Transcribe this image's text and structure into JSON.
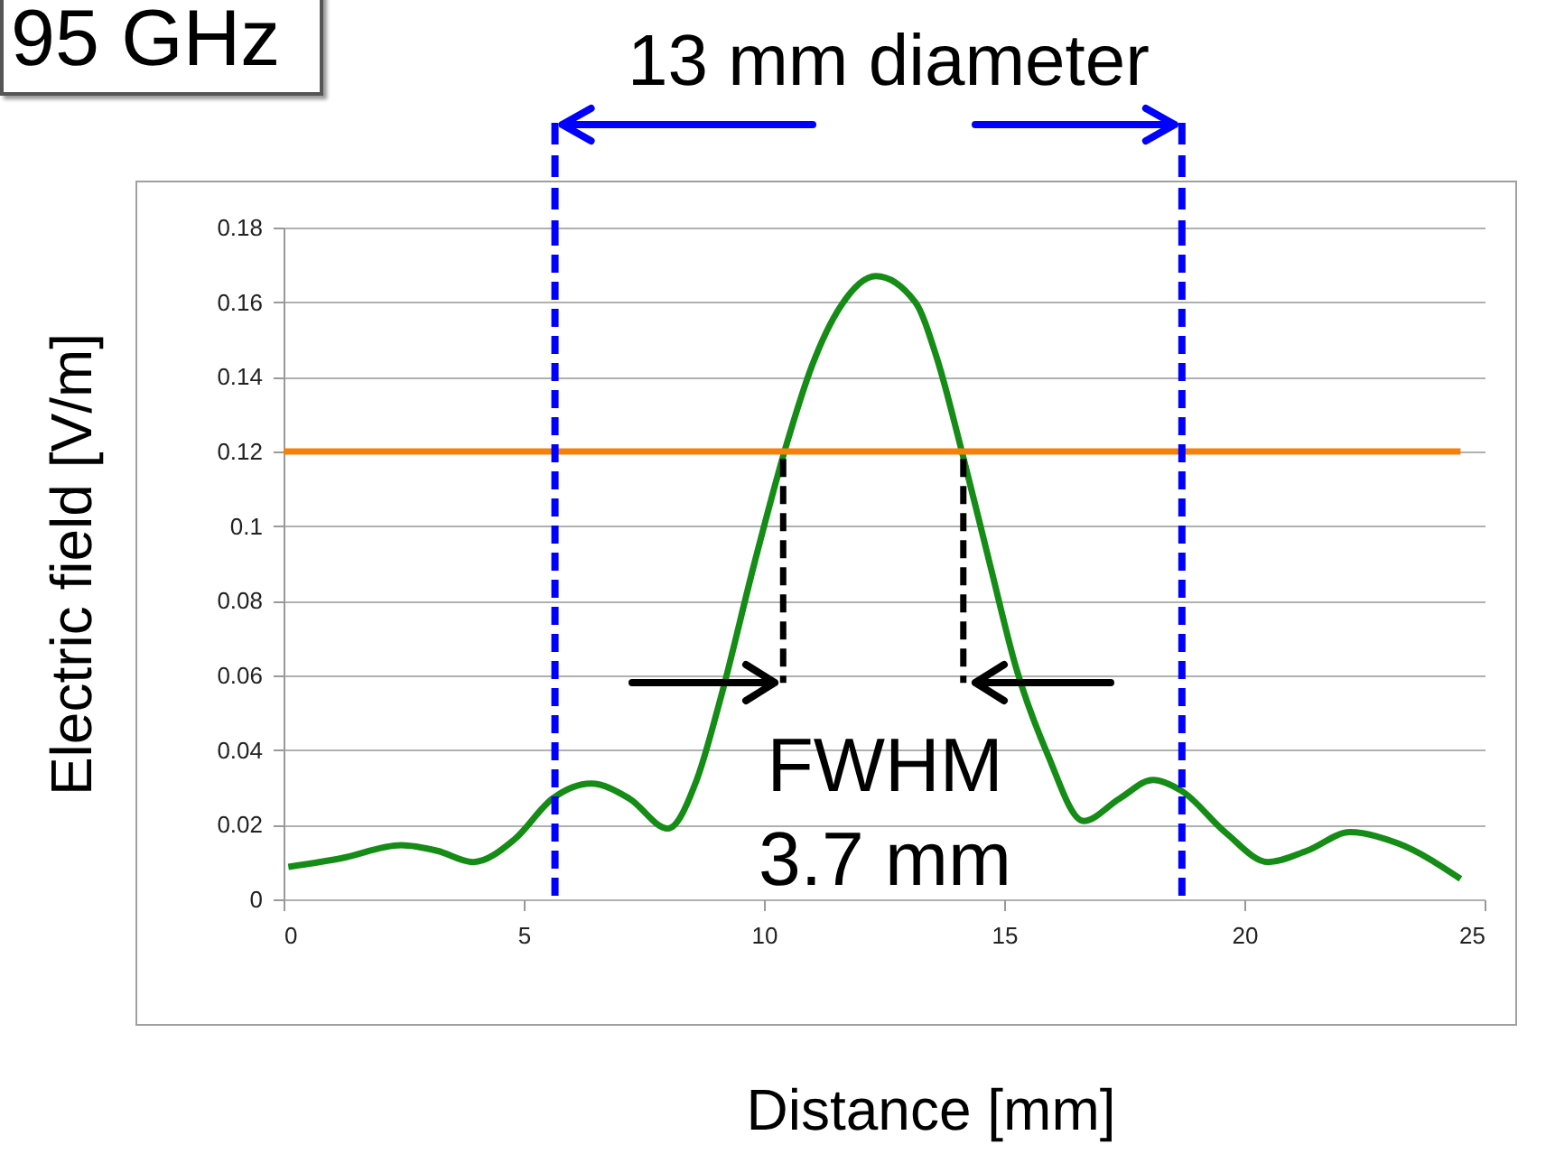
{
  "chart_data": {
    "type": "line",
    "xlabel": "Distance [mm]",
    "ylabel": "Electric field [V/m]",
    "xlim": [
      0,
      25
    ],
    "xticks": [
      0,
      5,
      10,
      15,
      20,
      25
    ],
    "ylim": [
      0,
      0.18
    ],
    "yticks": [
      0,
      0.02,
      0.04,
      0.06,
      0.08,
      0.1,
      0.12,
      0.14,
      0.16,
      0.18
    ],
    "grid": "y",
    "marker": "none",
    "series": [
      {
        "color": "#158c15",
        "line_style": "solid",
        "x": [
          0.1,
          1.2,
          2.45,
          3.2,
          3.95,
          4.8,
          5.6,
          6.4,
          7.2,
          8.0,
          8.6,
          9.1,
          9.8,
          10.45,
          11.0,
          11.6,
          12.33,
          13.15,
          13.6,
          14.1,
          14.7,
          15.25,
          15.9,
          16.65,
          17.4,
          18.1,
          18.7,
          19.6,
          20.5,
          21.3,
          22.2,
          23.2,
          24.5
        ],
        "values": [
          0.0087,
          0.011,
          0.0145,
          0.013,
          0.01,
          0.016,
          0.027,
          0.031,
          0.027,
          0.019,
          0.032,
          0.054,
          0.09,
          0.121,
          0.143,
          0.159,
          0.167,
          0.16,
          0.145,
          0.121,
          0.09,
          0.062,
          0.039,
          0.021,
          0.027,
          0.032,
          0.029,
          0.018,
          0.01,
          0.013,
          0.018,
          0.015,
          0.0055
        ]
      },
      {
        "color": "#f5800a",
        "line_style": "solid",
        "x": [
          0,
          24.5
        ],
        "values": [
          0.12,
          0.12
        ]
      },
      {
        "color": "#000000",
        "line_style": "dashed",
        "x": [
          10.4,
          10.4
        ],
        "values": [
          0.118,
          0.058
        ]
      },
      {
        "color": "#000000",
        "line_style": "dashed",
        "x": [
          14.15,
          14.15
        ],
        "values": [
          0.118,
          0.058
        ]
      }
    ],
    "ref_lines": [
      {
        "axis": "x",
        "value": 5.65,
        "color": "#0000ff",
        "line_style": "dashed"
      },
      {
        "axis": "x",
        "value": 18.7,
        "color": "#0000ff",
        "line_style": "dashed"
      }
    ],
    "annotations": [
      "95 GHz",
      "13 mm diameter",
      "FWHM\n3.7 mm"
    ]
  }
}
